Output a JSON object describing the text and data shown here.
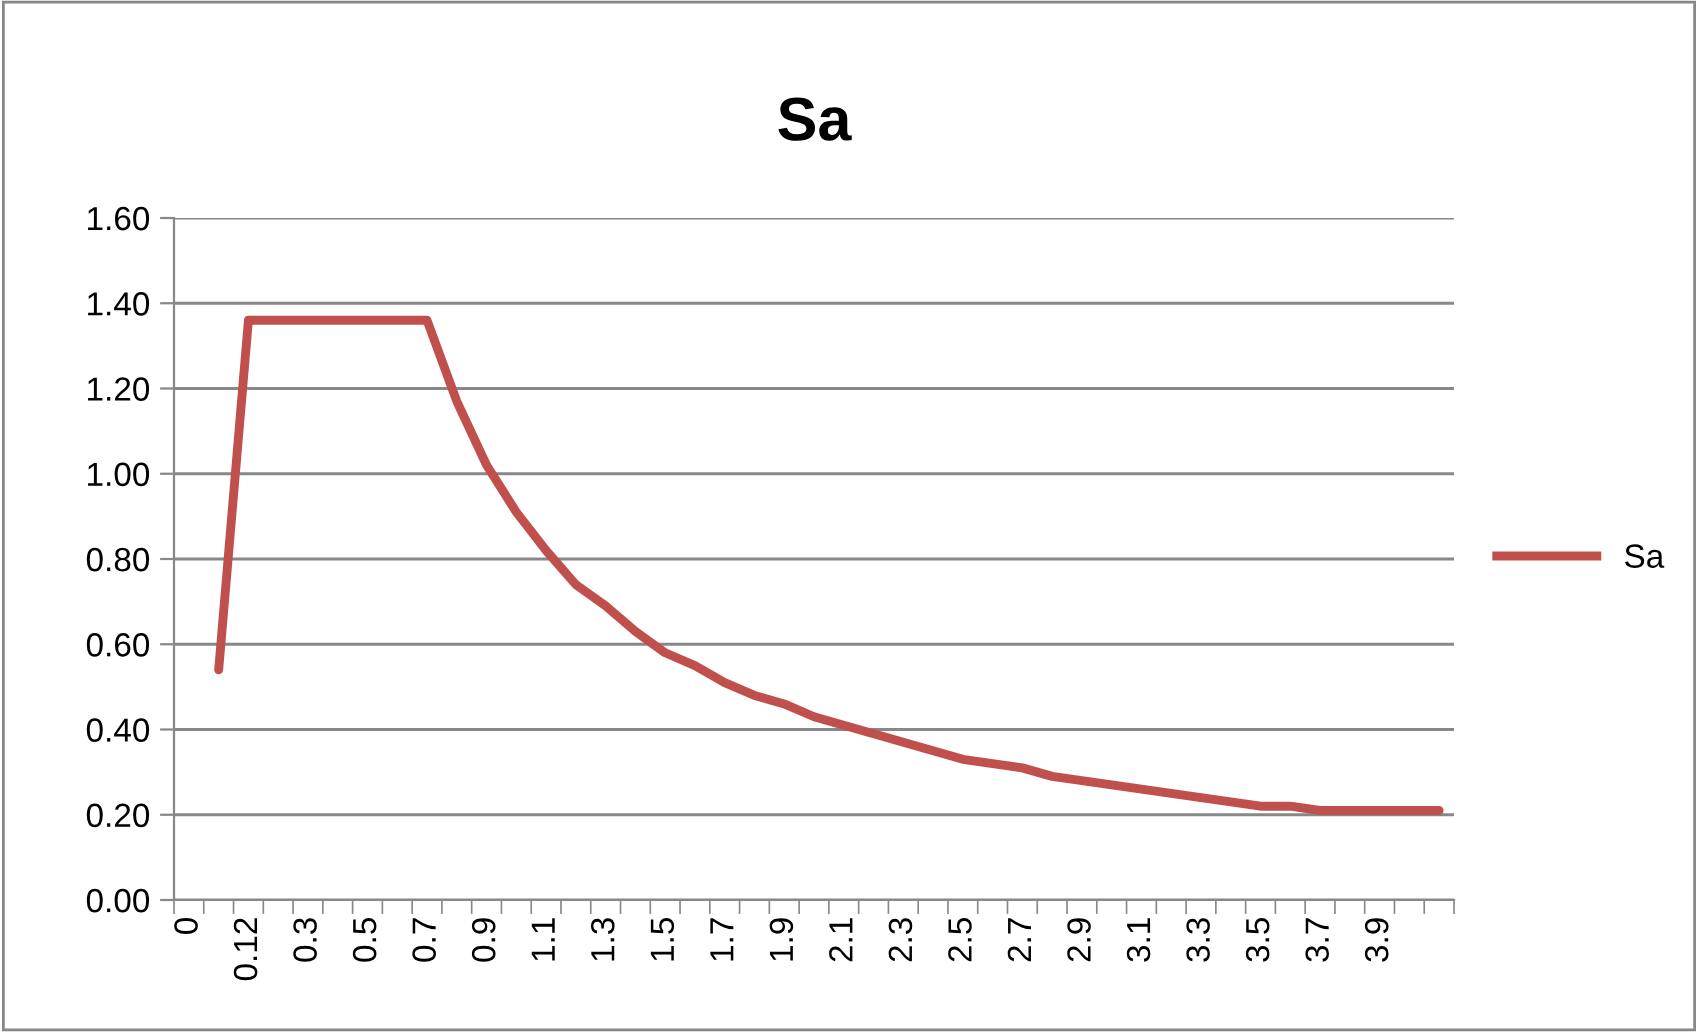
{
  "chart_data": {
    "type": "line",
    "title": "Sa",
    "categories": [
      "0",
      null,
      "0.12",
      null,
      "0.3",
      null,
      "0.5",
      null,
      "0.7",
      null,
      "0.9",
      null,
      "1.1",
      null,
      "1.3",
      null,
      "1.5",
      null,
      "1.7",
      null,
      "1.9",
      null,
      "2.1",
      null,
      "2.3",
      null,
      "2.5",
      null,
      "2.7",
      null,
      "2.9",
      null,
      "3.1",
      null,
      "3.3",
      null,
      "3.5",
      null,
      "3.7",
      null,
      "3.9",
      null,
      null
    ],
    "series": [
      {
        "name": "Sa",
        "color": "#c0504d",
        "values": [
          null,
          0.54,
          1.36,
          1.36,
          1.36,
          1.36,
          1.36,
          1.36,
          1.36,
          1.17,
          1.02,
          0.91,
          0.82,
          0.74,
          0.69,
          0.63,
          0.58,
          0.55,
          0.51,
          0.48,
          0.46,
          0.43,
          0.41,
          0.39,
          0.37,
          0.35,
          0.33,
          0.32,
          0.31,
          0.29,
          0.28,
          0.27,
          0.26,
          0.25,
          0.24,
          0.23,
          0.22,
          0.22,
          0.21,
          0.21,
          0.21,
          0.21,
          0.21
        ]
      }
    ],
    "ylim": [
      0,
      1.6
    ],
    "yticks": [
      {
        "value": 0,
        "label": "0.00"
      },
      {
        "value": 0.2,
        "label": "0.20"
      },
      {
        "value": 0.4,
        "label": "0.40"
      },
      {
        "value": 0.6,
        "label": "0.60"
      },
      {
        "value": 0.8,
        "label": "0.80"
      },
      {
        "value": 1.0,
        "label": "1.00"
      },
      {
        "value": 1.2,
        "label": "1.20"
      },
      {
        "value": 1.4,
        "label": "1.40"
      },
      {
        "value": 1.6,
        "label": "1.60"
      }
    ],
    "grid": "y",
    "legend": "right",
    "marker": "none",
    "line_style": "solid"
  }
}
